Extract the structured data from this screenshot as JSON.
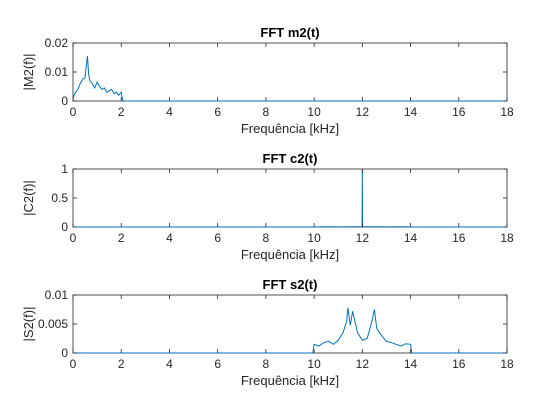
{
  "chart_data": [
    {
      "type": "line",
      "title": "FFT m2(t)",
      "xlabel": "Frequência [kHz]",
      "ylabel": "|M2(f)|",
      "xlim": [
        0,
        18
      ],
      "ylim": [
        0,
        0.02
      ],
      "xticks": [
        "0",
        "2",
        "4",
        "6",
        "8",
        "10",
        "12",
        "14",
        "16",
        "18"
      ],
      "yticks": [
        "0",
        "0.01",
        "0.02"
      ],
      "grid": false,
      "color": "#0072BD",
      "series": [
        {
          "x": [
            0.0,
            0.1,
            0.2,
            0.3,
            0.4,
            0.5,
            0.55,
            0.6,
            0.65,
            0.7,
            0.8,
            0.9,
            1.0,
            1.1,
            1.2,
            1.3,
            1.4,
            1.5,
            1.6,
            1.7,
            1.8,
            1.9,
            2.0,
            2.05,
            2.1,
            18.0
          ],
          "y": [
            0.001,
            0.003,
            0.004,
            0.006,
            0.0075,
            0.008,
            0.012,
            0.0155,
            0.009,
            0.007,
            0.006,
            0.0045,
            0.0065,
            0.005,
            0.004,
            0.0045,
            0.003,
            0.0035,
            0.004,
            0.0025,
            0.003,
            0.002,
            0.003,
            0.0005,
            0.0,
            0.0
          ]
        }
      ]
    },
    {
      "type": "line",
      "title": "FFT c2(t)",
      "xlabel": "Frequência [kHz]",
      "ylabel": "|C2(f)|",
      "xlim": [
        0,
        18
      ],
      "ylim": [
        0,
        1
      ],
      "xticks": [
        "0",
        "2",
        "4",
        "6",
        "8",
        "10",
        "12",
        "14",
        "16",
        "18"
      ],
      "yticks": [
        "0",
        "0.5",
        "1"
      ],
      "grid": false,
      "color": "#0072BD",
      "series": [
        {
          "x": [
            0.0,
            10.0,
            10.5,
            11.0,
            11.5,
            11.99,
            12.0,
            12.01,
            12.5,
            13.0,
            13.5,
            14.0,
            14.05,
            18.0
          ],
          "y": [
            0.0,
            0.0,
            0.004,
            0.003,
            0.004,
            0.005,
            1.0,
            0.005,
            0.004,
            0.003,
            0.004,
            0.003,
            0.0,
            0.0
          ]
        }
      ]
    },
    {
      "type": "line",
      "title": "FFT s2(t)",
      "xlabel": "Frequência [kHz]",
      "ylabel": "|S2(f)|",
      "xlim": [
        0,
        18
      ],
      "ylim": [
        0,
        0.01
      ],
      "xticks": [
        "0",
        "2",
        "4",
        "6",
        "8",
        "10",
        "12",
        "14",
        "16",
        "18"
      ],
      "yticks": [
        "0",
        "0.005",
        "0.01"
      ],
      "grid": false,
      "color": "#0072BD",
      "series": [
        {
          "x": [
            0.0,
            9.95,
            10.0,
            10.2,
            10.4,
            10.6,
            10.8,
            11.0,
            11.2,
            11.35,
            11.4,
            11.5,
            11.6,
            11.8,
            12.0,
            12.2,
            12.4,
            12.5,
            12.6,
            12.8,
            13.0,
            13.2,
            13.4,
            13.6,
            13.8,
            14.0,
            14.05,
            18.0
          ],
          "y": [
            0.0,
            0.0,
            0.0015,
            0.0012,
            0.0018,
            0.002,
            0.0015,
            0.0022,
            0.0035,
            0.0055,
            0.0078,
            0.0048,
            0.0072,
            0.0035,
            0.0022,
            0.0025,
            0.0055,
            0.0075,
            0.0042,
            0.003,
            0.002,
            0.0018,
            0.0015,
            0.0012,
            0.0016,
            0.0015,
            0.0,
            0.0
          ]
        }
      ]
    }
  ]
}
